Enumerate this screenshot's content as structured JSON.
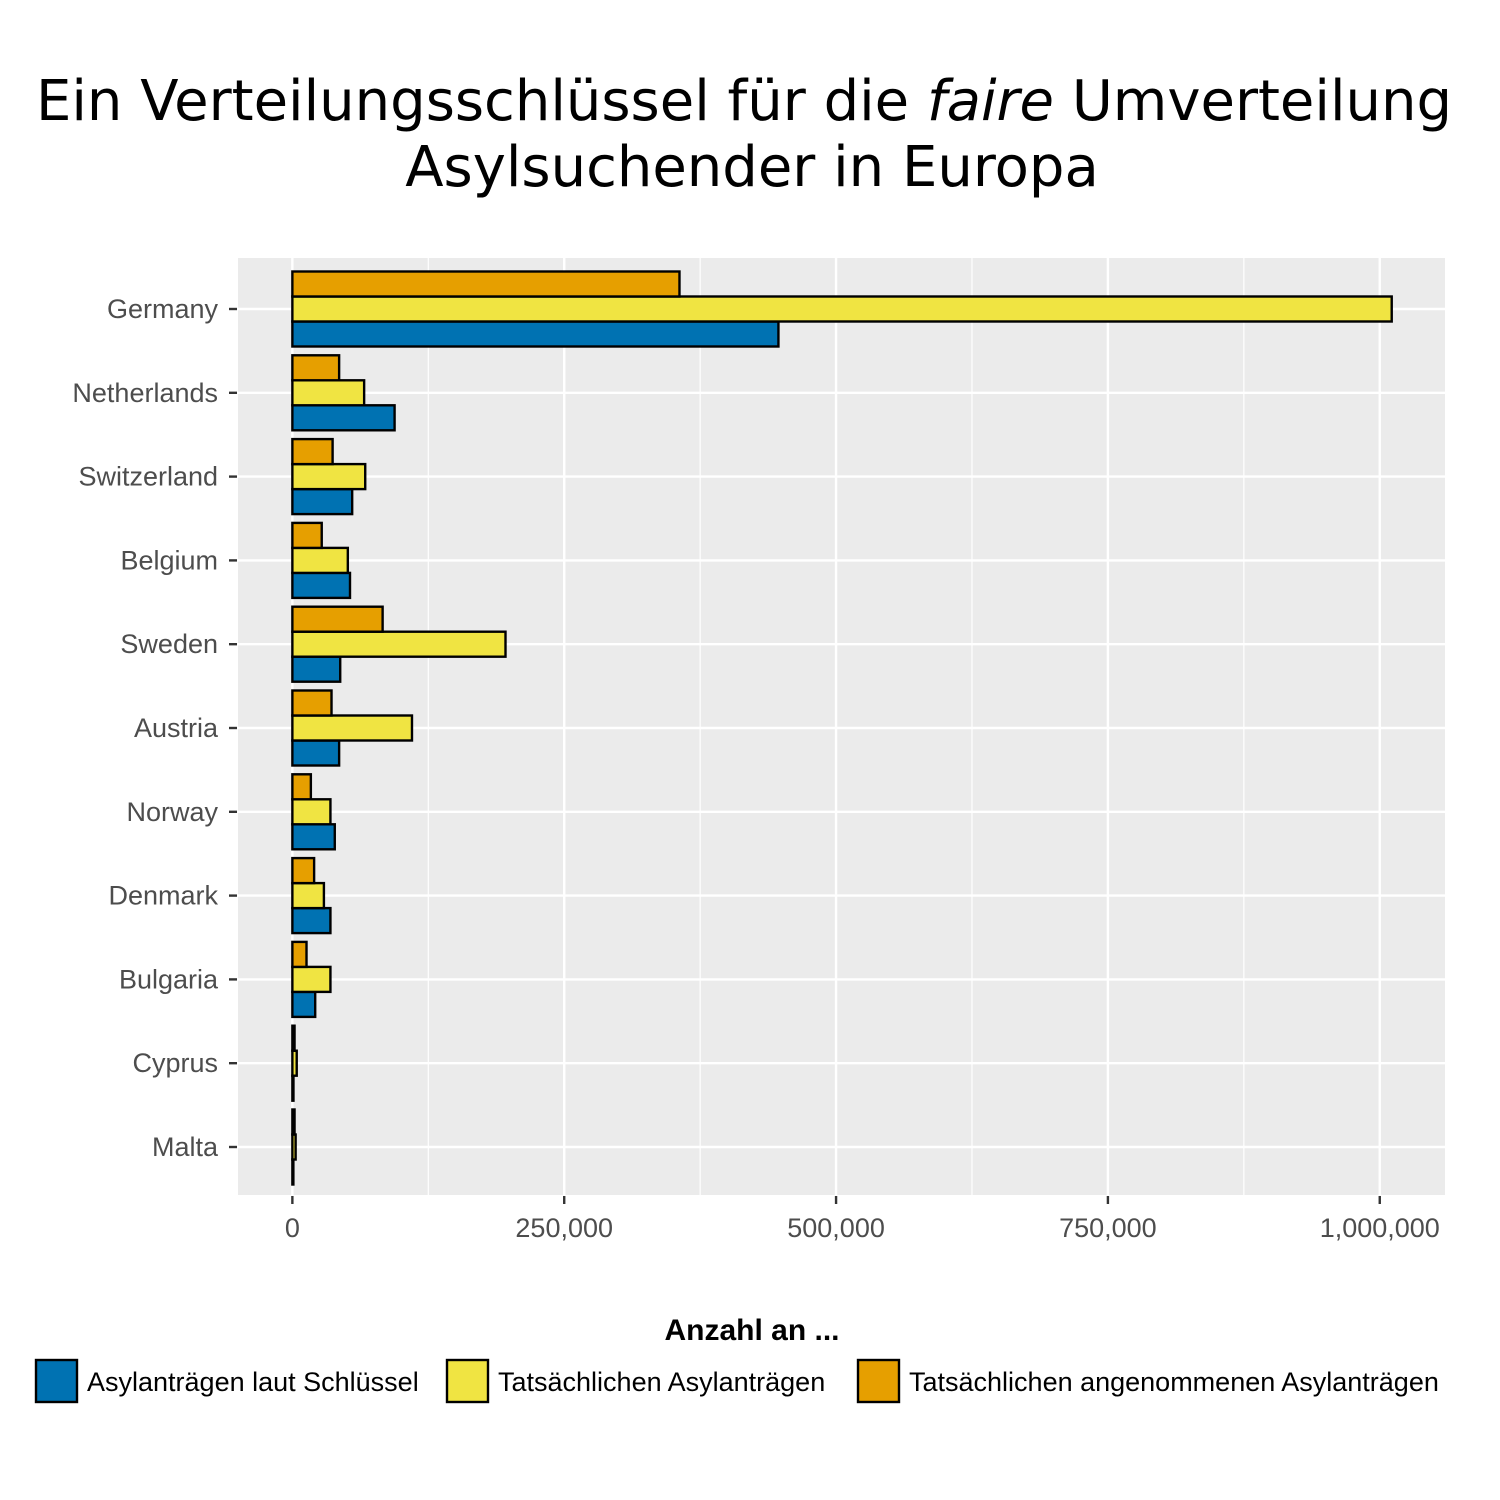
{
  "chart_data": {
    "type": "bar",
    "orientation": "horizontal",
    "title": {
      "line1_before": "Ein Verteilungsschlüssel für die ",
      "line1_italic": "faire",
      "line1_after": " Umverteilung",
      "line2": "Asylsuchender in Europa"
    },
    "categories": [
      "Germany",
      "Netherlands",
      "Switzerland",
      "Belgium",
      "Sweden",
      "Austria",
      "Norway",
      "Denmark",
      "Bulgaria",
      "Cyprus",
      "Malta"
    ],
    "series": [
      {
        "name": "Asylanträgen laut Schlüssel",
        "color": "#0072B2",
        "values": [
          447000,
          94000,
          55000,
          53000,
          44000,
          43000,
          39000,
          35000,
          21000,
          1000,
          500
        ]
      },
      {
        "name": "Tatsächlichen Asylanträgen",
        "color": "#F0E442",
        "values": [
          1011000,
          66000,
          67000,
          51000,
          196000,
          110000,
          35000,
          29000,
          35000,
          4000,
          3000
        ]
      },
      {
        "name": "Tatsächlichen angenommenen Asylanträgen",
        "color": "#E69F00",
        "values": [
          356000,
          43000,
          37000,
          27000,
          83000,
          36000,
          17000,
          20000,
          13000,
          2000,
          2000
        ]
      }
    ],
    "xlim": [
      -50000,
      1060000
    ],
    "xticks": [
      0,
      250000,
      500000,
      750000,
      1000000
    ],
    "xtick_labels": [
      "0",
      "250,000",
      "500,000",
      "750,000",
      "1,000,000"
    ],
    "xlabel": "",
    "ylabel": "",
    "grid": true,
    "panel_background": "#EBEBEB",
    "bar_outline": "#000000",
    "legend": {
      "title": "Anzahl an ...",
      "position": "bottom"
    }
  }
}
